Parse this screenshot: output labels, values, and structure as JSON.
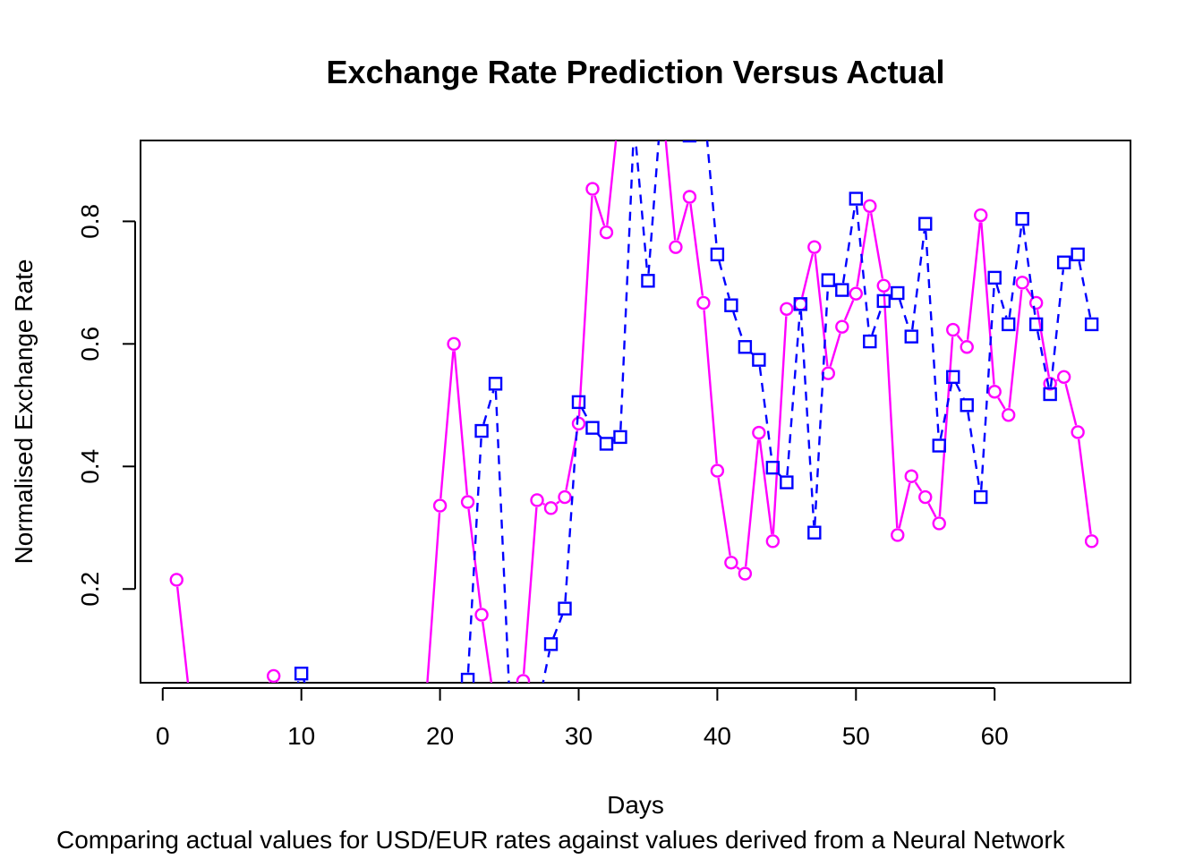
{
  "chart_data": {
    "type": "line",
    "title": "Exchange Rate Prediction Versus Actual",
    "xlabel": "Days",
    "ylabel": "Normalised Exchange Rate",
    "subtitle": "Comparing actual values for USD/EUR rates against values derived from a Neural Network",
    "xlim": [
      -1.6,
      69.8
    ],
    "ylim": [
      0.047,
      0.932
    ],
    "x_ticks": [
      0,
      10,
      20,
      30,
      40,
      50,
      60
    ],
    "y_ticks": [
      0.2,
      0.4,
      0.6,
      0.8
    ],
    "x_tick_labels": [
      "0",
      "10",
      "20",
      "30",
      "40",
      "50",
      "60"
    ],
    "y_tick_labels": [
      "0.2",
      "0.4",
      "0.6",
      "0.8"
    ],
    "grid": false,
    "series": [
      {
        "color": "#ff00ff",
        "marker": "circle",
        "line_style": "solid",
        "x": [
          1,
          2,
          3,
          4,
          5,
          6,
          7,
          8,
          9,
          10,
          11,
          12,
          13,
          14,
          15,
          16,
          17,
          18,
          19,
          20,
          21,
          22,
          23,
          24,
          25,
          26,
          27,
          28,
          29,
          30,
          31,
          32,
          33,
          34,
          35,
          36,
          37,
          38,
          39,
          40,
          41,
          42,
          43,
          44,
          45,
          46,
          47,
          48,
          49,
          50,
          51,
          52,
          53,
          54,
          55,
          56,
          57,
          58,
          59,
          60,
          61,
          62,
          63,
          64,
          65,
          66,
          67
        ],
        "values": [
          0.215,
          0.01,
          0.0,
          0.0,
          0.0,
          0.0,
          0.02,
          0.058,
          0.02,
          0.03,
          0.0,
          0.0,
          0.0,
          0.0,
          0.0,
          0.0,
          0.0,
          0.0,
          0.02,
          0.336,
          0.6,
          0.342,
          0.158,
          0.0,
          0.0,
          0.05,
          0.345,
          0.332,
          0.35,
          0.47,
          0.853,
          0.782,
          1.0,
          1.05,
          1.0,
          1.0,
          0.758,
          0.84,
          0.667,
          0.393,
          0.243,
          0.225,
          0.455,
          0.278,
          0.657,
          0.665,
          0.758,
          0.552,
          0.628,
          0.682,
          0.825,
          0.695,
          0.288,
          0.384,
          0.35,
          0.307,
          0.623,
          0.595,
          0.81,
          0.522,
          0.484,
          0.7,
          0.667,
          0.535,
          0.546,
          0.456,
          0.278
        ]
      },
      {
        "color": "#0000ff",
        "marker": "square",
        "line_style": "dashed",
        "x": [
          1,
          2,
          3,
          4,
          5,
          6,
          7,
          8,
          9,
          10,
          11,
          12,
          13,
          14,
          15,
          16,
          17,
          18,
          19,
          20,
          21,
          22,
          23,
          24,
          25,
          26,
          27,
          28,
          29,
          30,
          31,
          32,
          33,
          34,
          35,
          36,
          37,
          38,
          39,
          40,
          41,
          42,
          43,
          44,
          45,
          46,
          47,
          48,
          49,
          50,
          51,
          52,
          53,
          54,
          55,
          56,
          57,
          58,
          59,
          60,
          61,
          62,
          63,
          64,
          65,
          66,
          67
        ],
        "values": [
          0.0,
          0.0,
          0.0,
          0.0,
          0.0,
          0.0,
          0.0,
          0.0,
          0.0,
          0.062,
          0.0,
          0.0,
          0.0,
          0.0,
          0.0,
          0.0,
          0.0,
          0.0,
          0.0,
          0.0,
          0.0,
          0.052,
          0.458,
          0.535,
          0.03,
          0.0,
          0.0,
          0.11,
          0.168,
          0.505,
          0.463,
          0.437,
          0.448,
          0.96,
          0.703,
          1.0,
          1.05,
          0.94,
          1.0,
          0.746,
          0.663,
          0.595,
          0.574,
          0.398,
          0.374,
          0.665,
          0.292,
          0.704,
          0.688,
          0.837,
          0.604,
          0.67,
          0.683,
          0.612,
          0.796,
          0.434,
          0.546,
          0.5,
          0.35,
          0.708,
          0.632,
          0.804,
          0.632,
          0.518,
          0.733,
          0.746,
          0.632
        ]
      }
    ]
  }
}
